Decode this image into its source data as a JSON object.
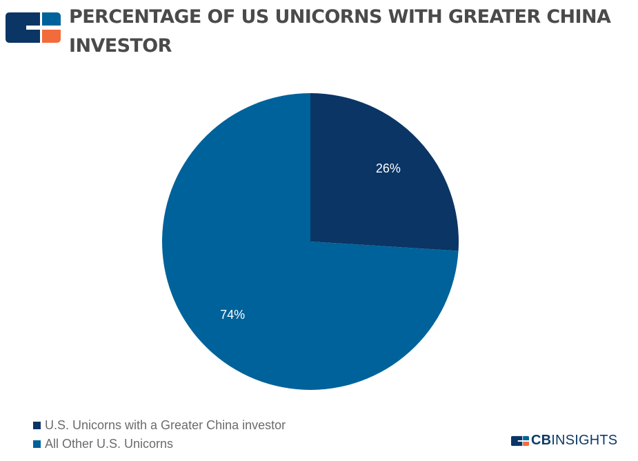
{
  "header": {
    "title": "PERCENTAGE OF US UNICORNS WITH GREATER CHINA INVESTOR",
    "logo_icon": "cb-insights-logo-mark"
  },
  "chart_data": {
    "type": "pie",
    "title": "PERCENTAGE OF US UNICORNS WITH GREATER CHINA INVESTOR",
    "categories": [
      "U.S. Unicorns with a Greater China investor",
      "All Other U.S. Unicorns"
    ],
    "values": [
      26,
      74
    ],
    "labels": [
      "26%",
      "74%"
    ],
    "colors": [
      "#0b3564",
      "#00629a"
    ],
    "legend_position": "bottom-left"
  },
  "legend": {
    "items": [
      {
        "label": "U.S. Unicorns with a Greater China investor",
        "color": "#0b3564"
      },
      {
        "label": "All Other U.S. Unicorns",
        "color": "#00629a"
      }
    ]
  },
  "brand": {
    "bold": "CB",
    "light": "INSIGHTS",
    "colors": {
      "navy": "#0b3564",
      "blue": "#00629a",
      "orange": "#f26b3a"
    }
  }
}
